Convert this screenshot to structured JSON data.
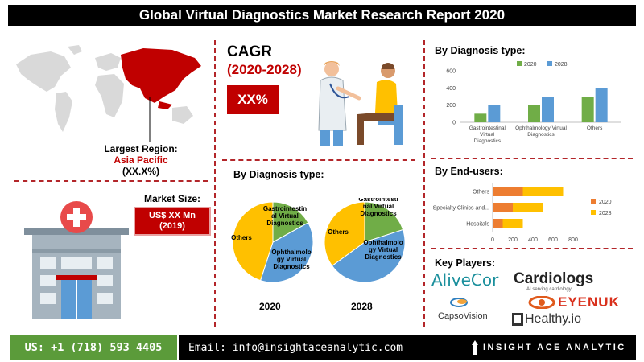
{
  "title": "Global Virtual Diagnostics Market Research Report 2020",
  "largest_region": {
    "label": "Largest Region:",
    "region": "Asia Pacific",
    "value": "(XX.X%)"
  },
  "market_size": {
    "label": "Market Size:",
    "value_line1": "US$ XX Mn",
    "value_line2": "(2019)"
  },
  "cagr": {
    "label": "CAGR",
    "years": "(2020-2028)",
    "value": "XX%"
  },
  "pie_section": {
    "title": "By Diagnosis type:"
  },
  "bar_diag_section": {
    "title": "By Diagnosis type:"
  },
  "bar_end_section": {
    "title": "By End-users:"
  },
  "key_players": {
    "title": "Key Players:",
    "logos": [
      "AliveCor",
      "Cardiologs",
      "AI serving cardiology",
      "CapsoVision",
      "EYENUK",
      "Healthy.io"
    ]
  },
  "footer": {
    "phone": "US: +1 (718) 593 4405",
    "email": "Email: info@insightaceanalytic.com",
    "brand": "INSIGHT ACE ANALYTIC"
  },
  "colors": {
    "accent_red": "#c00000",
    "green": "#70ad47",
    "blue": "#5b9bd5",
    "orange": "#ed7d31",
    "yellow": "#ffc000"
  },
  "chart_data": [
    {
      "type": "pie",
      "title": "2020",
      "slices": [
        {
          "label": "Gastrointestinal Virtual Diagnostics",
          "value": 17,
          "color": "#70ad47"
        },
        {
          "label": "Ophthalmology Virtual Diagnostics",
          "value": 38,
          "color": "#5b9bd5"
        },
        {
          "label": "Others",
          "value": 45,
          "color": "#ffc000"
        }
      ]
    },
    {
      "type": "pie",
      "title": "2028",
      "slices": [
        {
          "label": "Gastrointestinal Virtual Diagnostics",
          "value": 20,
          "color": "#70ad47"
        },
        {
          "label": "Ophthalmology Virtual Diagnostics",
          "value": 45,
          "color": "#5b9bd5"
        },
        {
          "label": "Others",
          "value": 35,
          "color": "#ffc000"
        }
      ]
    },
    {
      "type": "bar",
      "orientation": "vertical",
      "categories": [
        "Gastrointestinal Virtual Diagnostics",
        "Ophthalmology Virtual Diagnostics",
        "Others"
      ],
      "series": [
        {
          "name": "2020",
          "values": [
            100,
            200,
            300
          ],
          "color": "#70ad47"
        },
        {
          "name": "2028",
          "values": [
            200,
            300,
            400
          ],
          "color": "#5b9bd5"
        }
      ],
      "ylim": [
        0,
        600
      ],
      "yticks": [
        0,
        200,
        400,
        600
      ],
      "legend": "top"
    },
    {
      "type": "bar",
      "orientation": "horizontal",
      "stacked": true,
      "categories": [
        "Others",
        "Specialty Clinics and...",
        "Hospitals"
      ],
      "series": [
        {
          "name": "2020",
          "values": [
            300,
            200,
            100
          ],
          "color": "#ed7d31"
        },
        {
          "name": "2028",
          "values": [
            400,
            300,
            200
          ],
          "color": "#ffc000"
        }
      ],
      "xlim": [
        0,
        800
      ],
      "xticks": [
        0,
        200,
        400,
        600,
        800
      ],
      "legend": "right"
    }
  ]
}
